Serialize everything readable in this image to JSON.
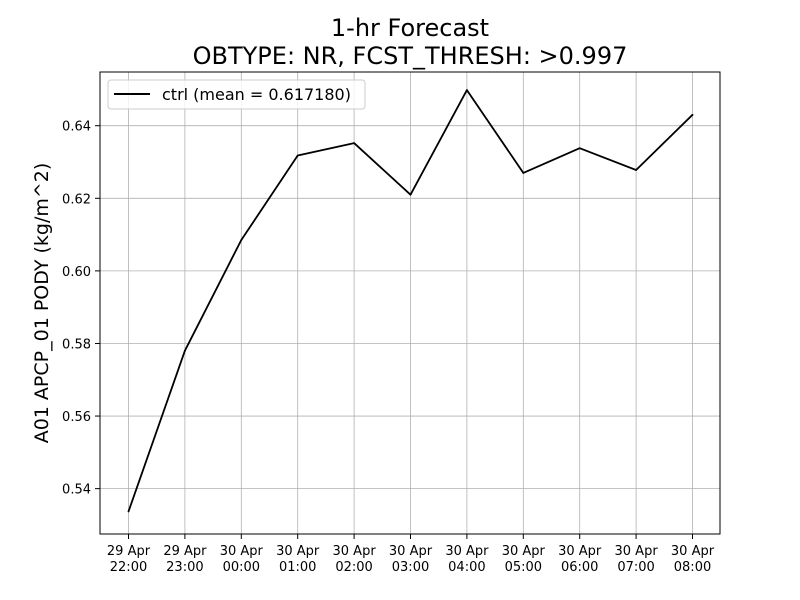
{
  "chart_data": {
    "type": "line",
    "title_line1": "1-hr Forecast",
    "title_line2": "OBTYPE: NR,  FCST_THRESH: >0.997",
    "xlabel": "",
    "ylabel": "A01 APCP_01 PODY (kg/m^2)",
    "categories": [
      [
        "29 Apr",
        "22:00"
      ],
      [
        "29 Apr",
        "23:00"
      ],
      [
        "30 Apr",
        "00:00"
      ],
      [
        "30 Apr",
        "01:00"
      ],
      [
        "30 Apr",
        "02:00"
      ],
      [
        "30 Apr",
        "03:00"
      ],
      [
        "30 Apr",
        "04:00"
      ],
      [
        "30 Apr",
        "05:00"
      ],
      [
        "30 Apr",
        "06:00"
      ],
      [
        "30 Apr",
        "07:00"
      ],
      [
        "30 Apr",
        "08:00"
      ]
    ],
    "ylim": [
      0.5275,
      0.6548
    ],
    "yticks": [
      0.54,
      0.56,
      0.58,
      0.6,
      0.62,
      0.64
    ],
    "ytick_labels": [
      "0.54",
      "0.56",
      "0.58",
      "0.60",
      "0.62",
      "0.64"
    ],
    "grid": true,
    "legend_position": "top-left",
    "series": [
      {
        "name": "ctrl (mean = 0.617180)",
        "color": "#000000",
        "values": [
          0.5337,
          0.578,
          0.6085,
          0.6318,
          0.6352,
          0.621,
          0.6498,
          0.627,
          0.6338,
          0.6278,
          0.643
        ]
      }
    ]
  }
}
